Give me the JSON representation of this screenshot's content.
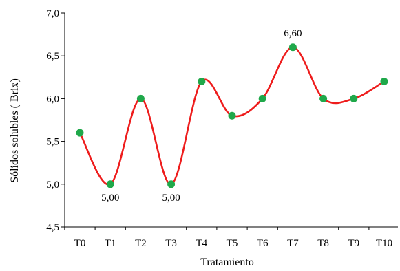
{
  "chart_data": {
    "type": "line",
    "title": "",
    "xlabel": "Tratamiento",
    "ylabel": "Sólidos solubles (   Brix)",
    "categories": [
      "T0",
      "T1",
      "T2",
      "T3",
      "T4",
      "T5",
      "T6",
      "T7",
      "T8",
      "T9",
      "T10"
    ],
    "series": [
      {
        "values": [
          5.6,
          5.0,
          6.0,
          5.0,
          6.2,
          5.8,
          6.0,
          6.6,
          6.0,
          6.0,
          6.2
        ],
        "line_color": "#ee1c1c",
        "marker_color": "#1fa84a",
        "smooth": true
      }
    ],
    "ylim": [
      4.5,
      7.0
    ],
    "yticks": [
      "4,5",
      "5,0",
      "5,5",
      "6,0",
      "6,5",
      "7,0"
    ],
    "ytick_values": [
      4.5,
      5.0,
      5.5,
      6.0,
      6.5,
      7.0
    ],
    "grid": false,
    "legend": "none",
    "data_labels": [
      {
        "index": 1,
        "text": "5,00",
        "position": "below"
      },
      {
        "index": 3,
        "text": "5,00",
        "position": "below"
      },
      {
        "index": 7,
        "text": "6,60",
        "position": "above"
      }
    ]
  }
}
